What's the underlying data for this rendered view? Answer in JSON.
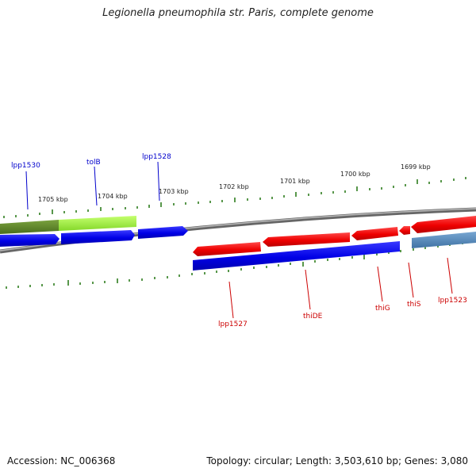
{
  "title": "Legionella pneumophila str. Paris, complete genome",
  "footer": {
    "accession": "Accession: NC_006368",
    "summary": "Topology: circular; Length: 3,503,610 bp; Genes: 3,080"
  },
  "kbp_labels": [
    "1705 kbp",
    "1704 kbp",
    "1703 kbp",
    "1702 kbp",
    "1701 kbp",
    "1700 kbp",
    "1699 kbp"
  ],
  "genes_top": [
    {
      "name": "lpp1530",
      "color": "#0000cc"
    },
    {
      "name": "tolB",
      "color": "#0000cc"
    },
    {
      "name": "lpp1528",
      "color": "#0000cc"
    }
  ],
  "genes_bottom": [
    {
      "name": "lpp1527",
      "color": "#cc0000"
    },
    {
      "name": "thiDE",
      "color": "#cc0000"
    },
    {
      "name": "thiG",
      "color": "#cc0000"
    },
    {
      "name": "thiS",
      "color": "#cc0000"
    },
    {
      "name": "lpp1523",
      "color": "#cc0000"
    }
  ],
  "colors": {
    "forward_cds": "#0000ee",
    "reverse_cds": "#ee0000",
    "backbone": "#888888",
    "ticks": "#2e7d1e",
    "top_feature_dark": "#5f8a2a",
    "top_feature_light": "#a6f03c",
    "steel_blue": "#4f86b8"
  }
}
